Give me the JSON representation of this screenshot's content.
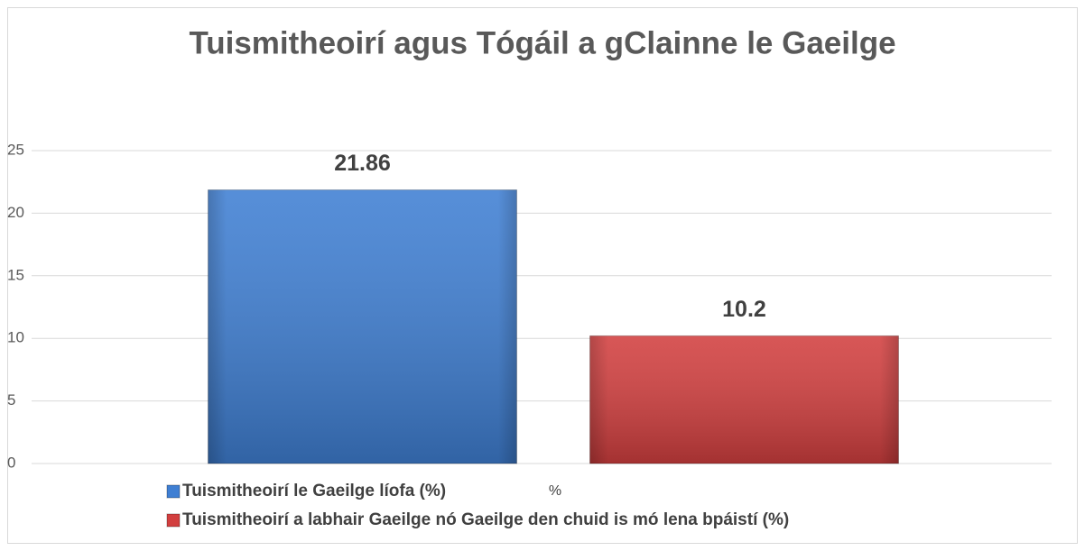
{
  "chart_data": {
    "type": "bar",
    "title": "Tuismitheoirí agus Tógáil a gClainne le Gaeilge",
    "categories": [
      "%"
    ],
    "series": [
      {
        "name": "Tuismitheoirí le Gaeilge líofa (%)",
        "color": "#3f7fd3",
        "values": [
          21.86
        ]
      },
      {
        "name": "Tuismitheoirí a labhair Gaeilge nó Gaeilge den chuid is mó lena bpáistí (%)",
        "color": "#d23f3f",
        "values": [
          10.2
        ]
      }
    ],
    "ylim": [
      0,
      25
    ],
    "yticks": [
      0,
      5,
      10,
      15,
      20,
      25
    ],
    "grid": true
  }
}
